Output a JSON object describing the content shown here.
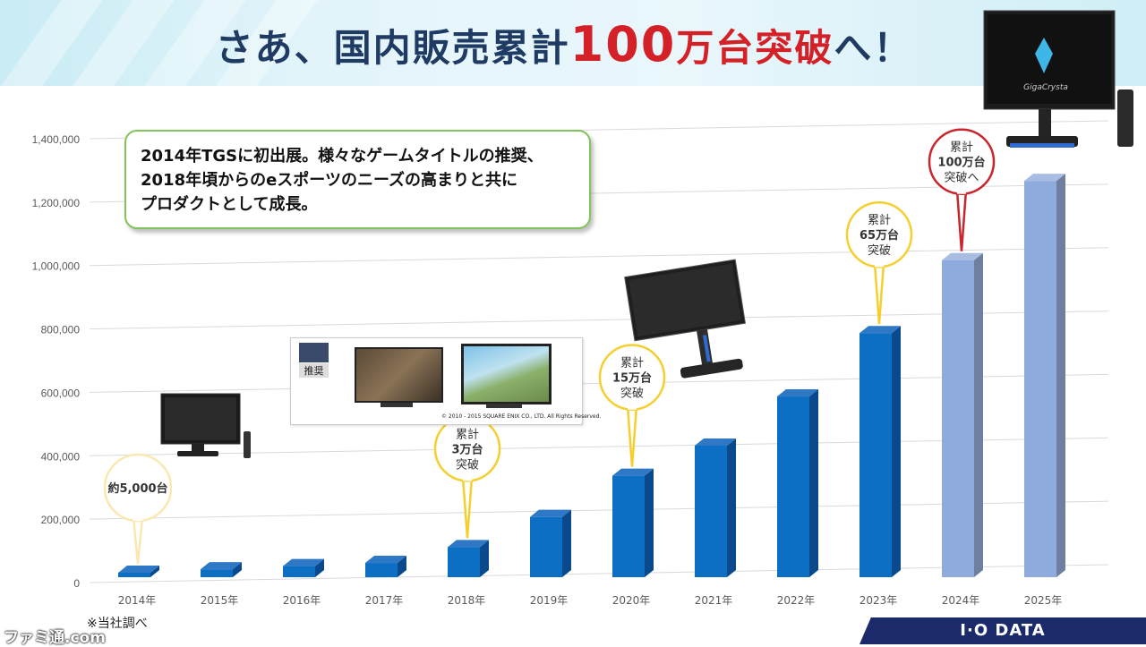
{
  "title": {
    "pre": "さあ、国内販売累計",
    "num": "100",
    "post": "万台突破",
    "tail": "へ！"
  },
  "callout": {
    "line1": "2014年TGSに初出展。様々なゲームタイトルの推奨、",
    "line2": "2018年頃からのeスポーツのニーズの高まりと共に",
    "line3": "プロダクトとして成長。"
  },
  "chart_data": {
    "type": "bar",
    "categories": [
      "2014年",
      "2015年",
      "2016年",
      "2017年",
      "2018年",
      "2019年",
      "2020年",
      "2021年",
      "2022年",
      "2023年",
      "2024年",
      "2025年"
    ],
    "values": [
      5000,
      25000,
      35000,
      45000,
      95000,
      190000,
      320000,
      415000,
      570000,
      770000,
      1000000,
      1250000
    ],
    "ylim": [
      0,
      1400000
    ],
    "yticks": [
      "0",
      "200,000",
      "400,000",
      "600,000",
      "800,000",
      "1,000,000",
      "1,200,000",
      "1,400,000"
    ],
    "grid": true,
    "colors": {
      "actual": "#0d6fc4",
      "forecast": "#8faadc"
    },
    "forecast_from_index": 10,
    "annotations": [
      {
        "index": 0,
        "lines": [
          "約5,000台"
        ],
        "color": "#fbe8b0"
      },
      {
        "index": 4,
        "lines": [
          "累計",
          "3万台",
          "突破"
        ],
        "color": "#f5cf2f"
      },
      {
        "index": 6,
        "lines": [
          "累計",
          "15万台",
          "突破"
        ],
        "color": "#f5cf2f"
      },
      {
        "index": 9,
        "lines": [
          "累計",
          "65万台",
          "突破"
        ],
        "color": "#f5cf2f"
      },
      {
        "index": 10,
        "lines": [
          "累計",
          "100万台",
          "突破へ"
        ],
        "color": "#c9252c"
      }
    ]
  },
  "ff_panel": {
    "badge": "推奨",
    "copyright": "© 2010 - 2015 SQUARE ENIX CO., LTD. All Rights Reserved."
  },
  "monitor_brand": "GigaCrysta",
  "footnote": "※当社調べ",
  "logo": "I·O DATA",
  "watermark": "ファミ通.com"
}
